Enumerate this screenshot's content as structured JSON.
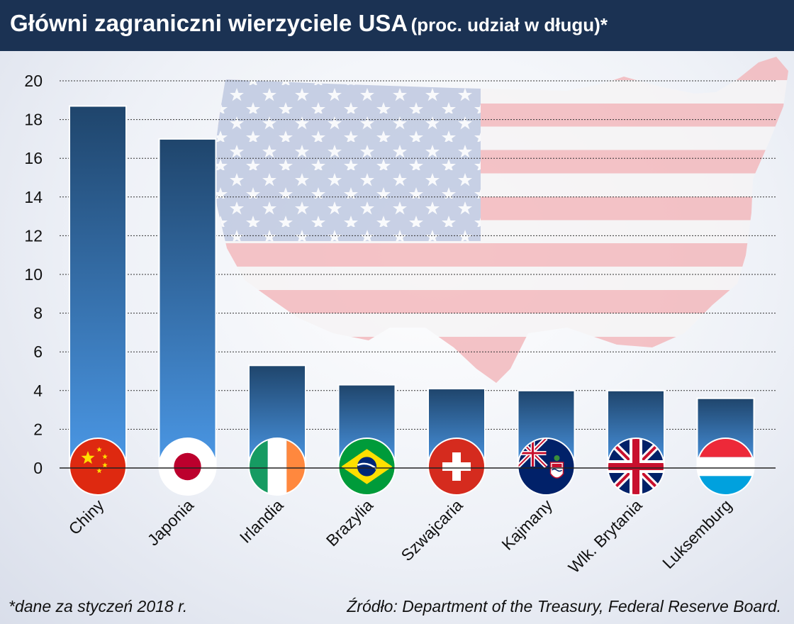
{
  "title": "Główni zagraniczni wierzyciele USA",
  "subtitle": "(proc. udział w długu)*",
  "footnote": "*dane za styczeń 2018 r.",
  "source": "Źródło: Department of the Treasury, Federal Reserve Board.",
  "colors": {
    "header": "#1b3253",
    "bar_top": "#1f456c",
    "bar_bottom": "#4b98e6"
  },
  "chart_data": {
    "type": "bar",
    "categories": [
      "Chiny",
      "Japonia",
      "Irlandia",
      "Brazylia",
      "Szwajcaria",
      "Kajmany",
      "Wlk. Brytania",
      "Luksemburg"
    ],
    "values": [
      18.7,
      17.0,
      5.3,
      4.3,
      4.1,
      4.0,
      4.0,
      3.6
    ],
    "ylim": [
      0,
      20
    ],
    "yticks": [
      0,
      2,
      4,
      6,
      8,
      10,
      12,
      14,
      16,
      18,
      20
    ],
    "grid": true,
    "flags": [
      "china-flag-icon",
      "japan-flag-icon",
      "ireland-flag-icon",
      "brazil-flag-icon",
      "switzerland-flag-icon",
      "cayman-islands-flag-icon",
      "uk-flag-icon",
      "luxembourg-flag-icon"
    ]
  }
}
